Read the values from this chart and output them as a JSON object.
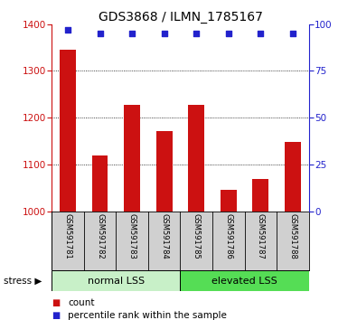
{
  "title": "GDS3868 / ILMN_1785167",
  "samples": [
    "GSM591781",
    "GSM591782",
    "GSM591783",
    "GSM591784",
    "GSM591785",
    "GSM591786",
    "GSM591787",
    "GSM591788"
  ],
  "counts": [
    1345,
    1120,
    1228,
    1172,
    1228,
    1045,
    1068,
    1148
  ],
  "percentile_ranks": [
    97,
    95,
    95,
    95,
    95,
    95,
    95,
    95
  ],
  "ylim_left": [
    1000,
    1400
  ],
  "ylim_right": [
    0,
    100
  ],
  "yticks_left": [
    1000,
    1100,
    1200,
    1300,
    1400
  ],
  "yticks_right": [
    0,
    25,
    50,
    75,
    100
  ],
  "bar_color": "#cc1111",
  "dot_color": "#2222cc",
  "group1_label": "normal LSS",
  "group2_label": "elevated LSS",
  "group1_indices": [
    0,
    1,
    2,
    3
  ],
  "group2_indices": [
    4,
    5,
    6,
    7
  ],
  "group1_bg": "#c8f0c8",
  "group2_bg": "#55dd55",
  "stress_label": "stress",
  "legend_count_label": "count",
  "legend_pct_label": "percentile rank within the sample",
  "background_color": "#ffffff",
  "tick_label_color_left": "#cc1111",
  "tick_label_color_right": "#2222cc",
  "label_area_bg": "#d0d0d0"
}
